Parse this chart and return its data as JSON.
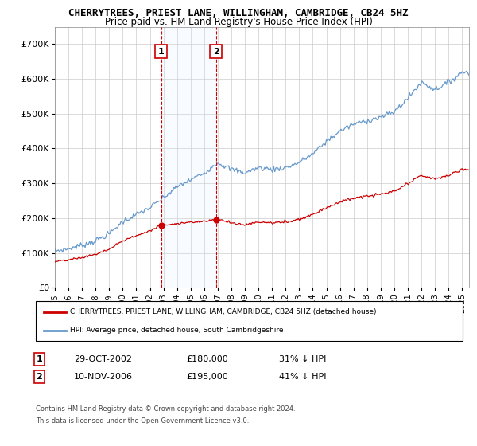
{
  "title": "CHERRYTREES, PRIEST LANE, WILLINGHAM, CAMBRIDGE, CB24 5HZ",
  "subtitle": "Price paid vs. HM Land Registry's House Price Index (HPI)",
  "xlim_start": 1995.0,
  "xlim_end": 2025.5,
  "ylim": [
    0,
    750000
  ],
  "yticks": [
    0,
    100000,
    200000,
    300000,
    400000,
    500000,
    600000,
    700000
  ],
  "ytick_labels": [
    "£0",
    "£100K",
    "£200K",
    "£300K",
    "£400K",
    "£500K",
    "£600K",
    "£700K"
  ],
  "sale1_x": 2002.83,
  "sale1_y": 180000,
  "sale1_label": "1",
  "sale1_date": "29-OCT-2002",
  "sale1_price": "£180,000",
  "sale1_hpi": "31% ↓ HPI",
  "sale2_x": 2006.87,
  "sale2_y": 195000,
  "sale2_label": "2",
  "sale2_date": "10-NOV-2006",
  "sale2_price": "£195,000",
  "sale2_hpi": "41% ↓ HPI",
  "hpi_color": "#6699cc",
  "sale_color": "#cc0000",
  "vline_color": "#cc0000",
  "legend_house": "CHERRYTREES, PRIEST LANE, WILLINGHAM, CAMBRIDGE, CB24 5HZ (detached house)",
  "legend_hpi": "HPI: Average price, detached house, South Cambridgeshire",
  "footer1": "Contains HM Land Registry data © Crown copyright and database right 2024.",
  "footer2": "This data is licensed under the Open Government Licence v3.0.",
  "bg_shade_color": "#ddeeff",
  "hpi_years": [
    1995,
    1996,
    1997,
    1998,
    1999,
    2000,
    2001,
    2002,
    2003,
    2004,
    2005,
    2006,
    2007,
    2008,
    2009,
    2010,
    2011,
    2012,
    2013,
    2014,
    2015,
    2016,
    2017,
    2018,
    2019,
    2020,
    2021,
    2022,
    2023,
    2024,
    2025
  ],
  "hpi_values": [
    105000,
    112000,
    122000,
    135000,
    155000,
    190000,
    210000,
    230000,
    258000,
    290000,
    310000,
    330000,
    360000,
    340000,
    330000,
    345000,
    340000,
    345000,
    360000,
    385000,
    420000,
    450000,
    470000,
    480000,
    490000,
    505000,
    545000,
    590000,
    570000,
    590000,
    620000
  ],
  "xtick_years": [
    1995,
    1996,
    1997,
    1998,
    1999,
    2000,
    2001,
    2002,
    2003,
    2004,
    2005,
    2006,
    2007,
    2008,
    2009,
    2010,
    2011,
    2012,
    2013,
    2014,
    2015,
    2016,
    2017,
    2018,
    2019,
    2020,
    2021,
    2022,
    2023,
    2024,
    2025
  ]
}
